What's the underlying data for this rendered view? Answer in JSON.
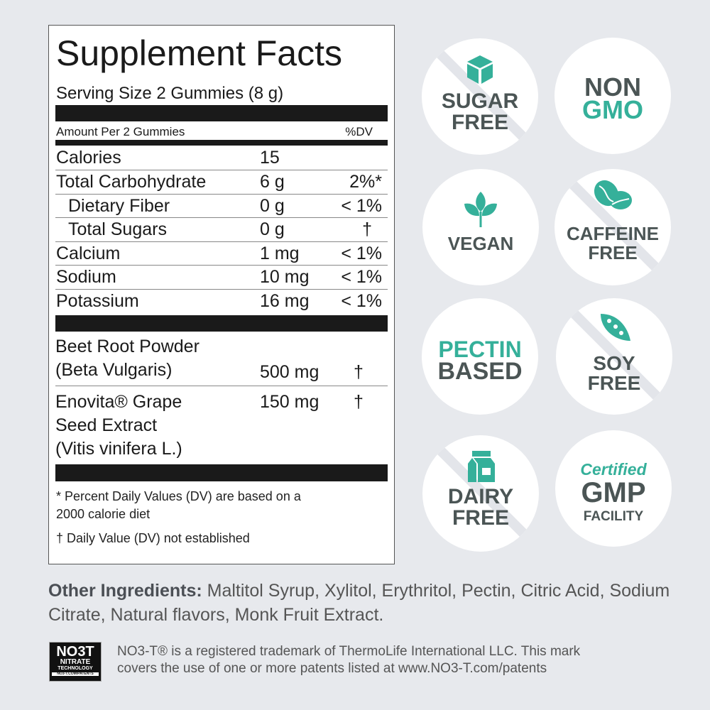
{
  "facts": {
    "title": "Supplement Facts",
    "serving": "Serving Size 2 Gummies (8 g)",
    "amount_per": "Amount Per 2 Gummies",
    "dv_header": "%DV",
    "rows": [
      {
        "name": "Calories",
        "amount": "15",
        "dv": ""
      },
      {
        "name": "Total Carbohydrate",
        "amount": "6 g",
        "dv": "2%*"
      },
      {
        "name": "Dietary Fiber",
        "amount": "0 g",
        "dv": "< 1%"
      },
      {
        "name": "Total Sugars",
        "amount": "0 g",
        "dv": "†"
      },
      {
        "name": "Calcium",
        "amount": "1 mg",
        "dv": "< 1%"
      },
      {
        "name": "Sodium",
        "amount": "10 mg",
        "dv": "< 1%"
      },
      {
        "name": "Potassium",
        "amount": "16 mg",
        "dv": "< 1%"
      }
    ],
    "ingredients": [
      {
        "line1": "Beet Root Powder",
        "line2": "(Beta Vulgaris)",
        "amount": "500 mg",
        "dv": "†"
      },
      {
        "line1": "Enovita® Grape",
        "line2": "Seed Extract",
        "line3": "(Vitis vinifera L.)",
        "amount": "150 mg",
        "dv": "†"
      }
    ],
    "footnote1": "* Percent Daily Values (DV) are based on a",
    "footnote1b": "2000 calorie diet",
    "footnote2": "† Daily Value (DV) not established"
  },
  "badges": [
    {
      "line1": "SUGAR",
      "line2": "FREE",
      "icon": "sugar-cube-icon"
    },
    {
      "line1": "NON",
      "line2": "GMO"
    },
    {
      "line1": "VEGAN",
      "icon": "leaf-sprout-icon"
    },
    {
      "line1": "CAFFEINE",
      "line2": "FREE",
      "icon": "coffee-bean-icon"
    },
    {
      "line1": "PECTIN",
      "line2": "BASED"
    },
    {
      "line1": "SOY",
      "line2": "FREE",
      "icon": "soy-pod-icon"
    },
    {
      "line1": "DAIRY",
      "line2": "FREE",
      "icon": "milk-carton-icon"
    },
    {
      "line1": "Certified",
      "line2": "GMP",
      "line3": "FACILITY"
    }
  ],
  "other": {
    "label": "Other Ingredients:",
    "text": " Maltitol Syrup, Xylitol, Erythritol, Pectin, Citric Acid, Sodium Citrate, Natural flavors, Monk Fruit Extract."
  },
  "trademark": {
    "logo_main": "NO3T",
    "logo_sub1": "NITRATE",
    "logo_sub2": "TECHNOLOGY",
    "logo_sub3": "NO3-T.COM/PATENTS",
    "line1": "NO3-T® is a registered trademark of ThermoLife International LLC. This mark",
    "line2": "covers the use of one or more patents listed at www.NO3-T.com/patents"
  },
  "colors": {
    "teal": "#35b09a",
    "gray": "#4b5555",
    "background": "#e7e9ed"
  }
}
